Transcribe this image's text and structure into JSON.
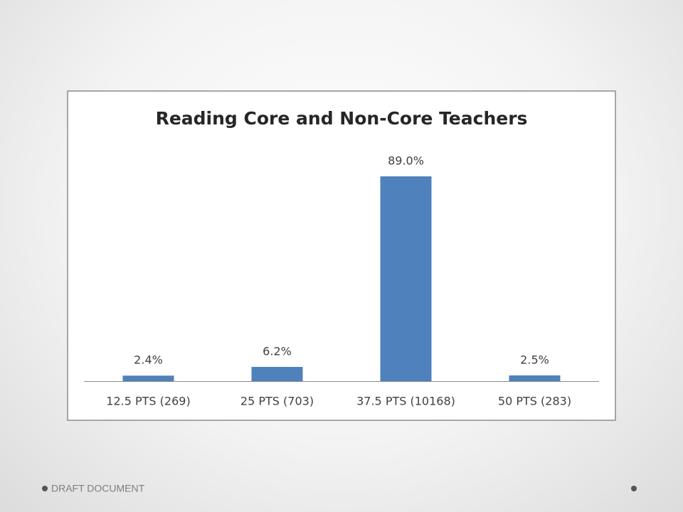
{
  "chart_data": {
    "type": "bar",
    "title": "Reading Core and Non-Core Teachers",
    "categories": [
      "12.5 PTS (269)",
      "25 PTS (703)",
      "37.5 PTS (10168)",
      "50 PTS (283)"
    ],
    "values": [
      2.4,
      6.2,
      89.0,
      2.5
    ],
    "value_labels": [
      "2.4%",
      "6.2%",
      "89.0%",
      "2.5%"
    ],
    "color": "#4f81bd"
  },
  "footer": "DRAFT DOCUMENT"
}
